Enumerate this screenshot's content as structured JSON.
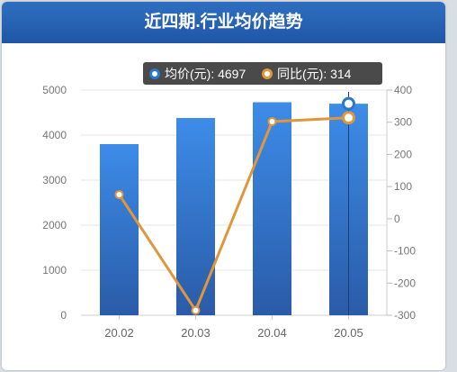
{
  "header": {
    "title": "近四期.行业均价趋势"
  },
  "tooltip": {
    "price_label": "均价(元): 4697",
    "yoy_label": "同比(元): 314"
  },
  "colors": {
    "bar_top": "#3d8ce8",
    "bar_bottom": "#2a5ba8",
    "line": "#e0963a",
    "marker_fill": "#ffffff",
    "header": "#2563b1",
    "tooltip_bg": "#4a4a4a"
  },
  "chart_data": {
    "type": "bar",
    "categories": [
      "20.02",
      "20.03",
      "20.04",
      "20.05"
    ],
    "series": [
      {
        "name": "均价(元)",
        "type": "bar",
        "axis": "left",
        "values": [
          3800,
          4380,
          4730,
          4697
        ]
      },
      {
        "name": "同比(元)",
        "type": "line",
        "axis": "right",
        "values": [
          75,
          -285,
          302,
          314
        ]
      }
    ],
    "y_left": {
      "min": 0,
      "max": 5000,
      "ticks": [
        0,
        1000,
        2000,
        3000,
        4000,
        5000
      ]
    },
    "y_right": {
      "min": -300,
      "max": 400,
      "ticks": [
        -300,
        -200,
        -100,
        0,
        100,
        200,
        300,
        400
      ]
    },
    "highlight_index": 3,
    "title": "近四期.行业均价趋势",
    "grid": true
  }
}
